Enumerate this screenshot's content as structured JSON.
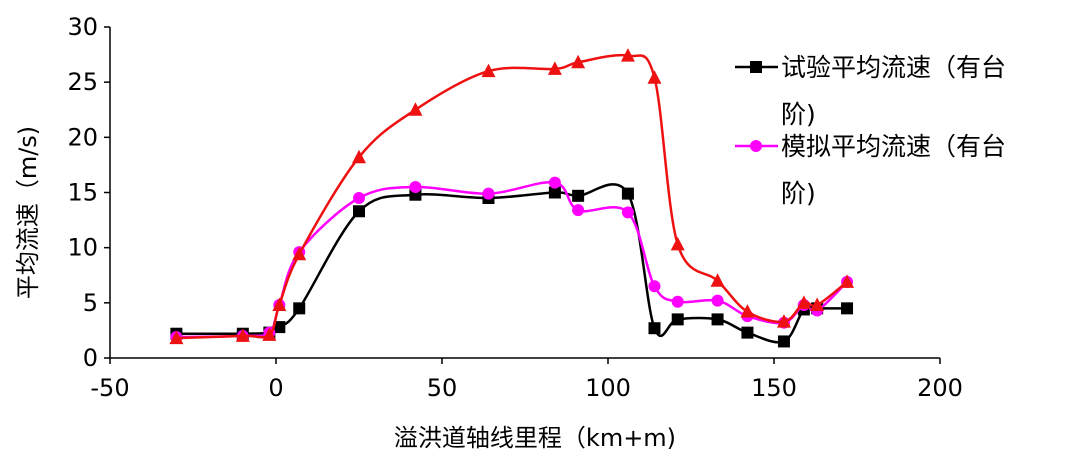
{
  "chart_data": {
    "type": "line",
    "xlabel": "溢洪道轴线里程（km+m)",
    "ylabel": "平均流速（m/s)",
    "xlim": [
      -50,
      200
    ],
    "ylim": [
      0,
      30
    ],
    "x_ticks": [
      "-50",
      "0",
      "50",
      "100",
      "150",
      "200"
    ],
    "y_ticks": [
      "0",
      "5",
      "10",
      "15",
      "20",
      "25",
      "30"
    ],
    "grid": false,
    "legend_position": "top-right",
    "series": [
      {
        "name": "试验平均流速（有台阶)",
        "color": "#000000",
        "marker": "square",
        "x": [
          -30,
          -10,
          -2,
          1,
          7,
          25,
          42,
          64,
          84,
          91,
          106,
          114,
          121,
          133,
          142,
          153,
          159,
          163,
          172
        ],
        "y": [
          2.2,
          2.2,
          2.3,
          2.8,
          4.5,
          13.3,
          14.8,
          14.5,
          15.0,
          14.7,
          14.9,
          2.7,
          3.5,
          3.5,
          2.3,
          1.5,
          4.4,
          4.5,
          4.5
        ]
      },
      {
        "name": "模拟平均流速（有台阶)",
        "color": "#ff00ff",
        "marker": "circle",
        "x": [
          -30,
          -10,
          -2,
          1,
          7,
          25,
          42,
          64,
          84,
          91,
          106,
          114,
          121,
          133,
          142,
          153,
          159,
          163,
          172
        ],
        "y": [
          1.9,
          2.0,
          2.3,
          4.8,
          9.6,
          14.5,
          15.5,
          14.9,
          15.9,
          13.4,
          13.2,
          6.5,
          5.1,
          5.2,
          3.8,
          3.2,
          4.8,
          4.3,
          6.9
        ]
      },
      {
        "name": "",
        "color": "#ee1111",
        "marker": "triangle",
        "x": [
          -30,
          -10,
          -2,
          1,
          7,
          25,
          42,
          64,
          84,
          91,
          106,
          114,
          121,
          133,
          142,
          153,
          159,
          163,
          172
        ],
        "y": [
          1.8,
          2.0,
          2.1,
          4.8,
          9.4,
          18.2,
          22.5,
          26.0,
          26.2,
          26.8,
          27.4,
          25.4,
          10.3,
          7.0,
          4.2,
          3.3,
          5.0,
          4.8,
          6.9
        ]
      }
    ]
  }
}
